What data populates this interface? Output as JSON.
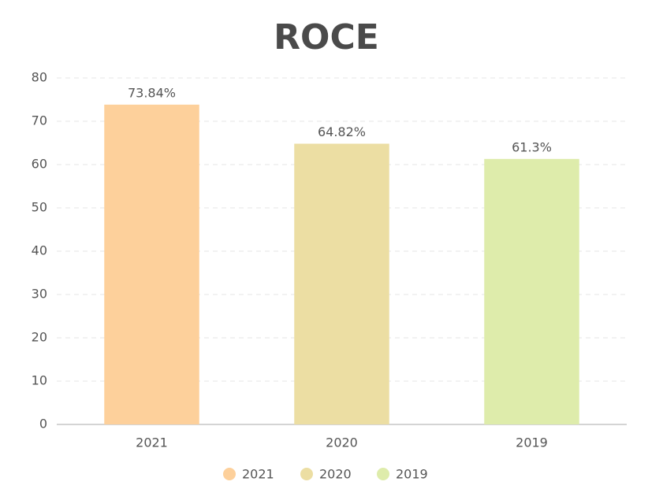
{
  "chart_data": {
    "type": "bar",
    "title": "ROCE",
    "categories": [
      "2021",
      "2020",
      "2019"
    ],
    "values": [
      73.84,
      64.82,
      61.3
    ],
    "value_labels": [
      "73.84%",
      "64.82%",
      "61.3%"
    ],
    "colors": [
      "#fdd09b",
      "#ecdea3",
      "#deecab"
    ],
    "ylim": [
      0,
      80
    ],
    "yticks": [
      0,
      10,
      20,
      30,
      40,
      50,
      60,
      70,
      80
    ],
    "grid": true,
    "legend": "bottom"
  }
}
